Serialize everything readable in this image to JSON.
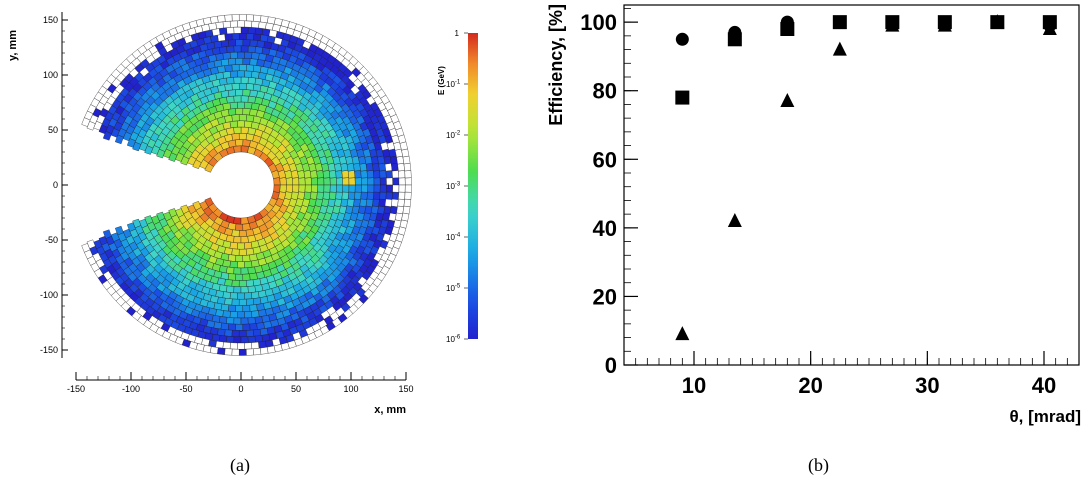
{
  "chart_data": [
    {
      "type": "heatmap",
      "xlabel": "x, mm",
      "ylabel": "y, mm",
      "xlim": [
        -150,
        150
      ],
      "ylim": [
        -150,
        150
      ],
      "x_ticks": [
        "-150",
        "-100",
        "-50",
        "0",
        "50",
        "100",
        "150"
      ],
      "y_ticks": [
        "150",
        "100",
        "50",
        "0",
        "-50",
        "-100",
        "-150"
      ],
      "colorbar": {
        "label": "E (GeV)",
        "scale": "log",
        "range": [
          1e-06,
          1
        ],
        "ticks": [
          "1",
          "10-1",
          "10-2",
          "10-3",
          "10-4",
          "10-5",
          "10-6"
        ]
      },
      "geometry": {
        "outer_radius_mm": 155,
        "inner_radius_mm": 30,
        "gap_angle_deg": [
          160,
          200
        ]
      }
    },
    {
      "type": "scatter",
      "xlabel": "θ, [mrad]",
      "ylabel": "Efficiency, [%]",
      "xlim": [
        4,
        43
      ],
      "ylim": [
        0,
        105
      ],
      "x_ticks": [
        10,
        20,
        30,
        40
      ],
      "y_ticks": [
        0,
        20,
        40,
        60,
        80,
        100
      ],
      "series": [
        {
          "marker": "circle",
          "x": [
            9,
            13.5,
            18,
            22.5,
            27,
            31.5,
            36,
            40.5
          ],
          "y": [
            95,
            97,
            100,
            100,
            100,
            100,
            100,
            99
          ]
        },
        {
          "marker": "square",
          "x": [
            9,
            13.5,
            18,
            22.5,
            27,
            31.5,
            36,
            40.5
          ],
          "y": [
            78,
            95,
            98,
            100,
            100,
            100,
            100,
            100
          ]
        },
        {
          "marker": "triangle",
          "x": [
            9,
            13.5,
            18,
            22.5,
            27,
            31.5,
            36,
            40.5
          ],
          "y": [
            9,
            42,
            77,
            92,
            99,
            99,
            100,
            98
          ]
        }
      ]
    }
  ],
  "captions": {
    "a": "(a)",
    "b": "(b)"
  }
}
